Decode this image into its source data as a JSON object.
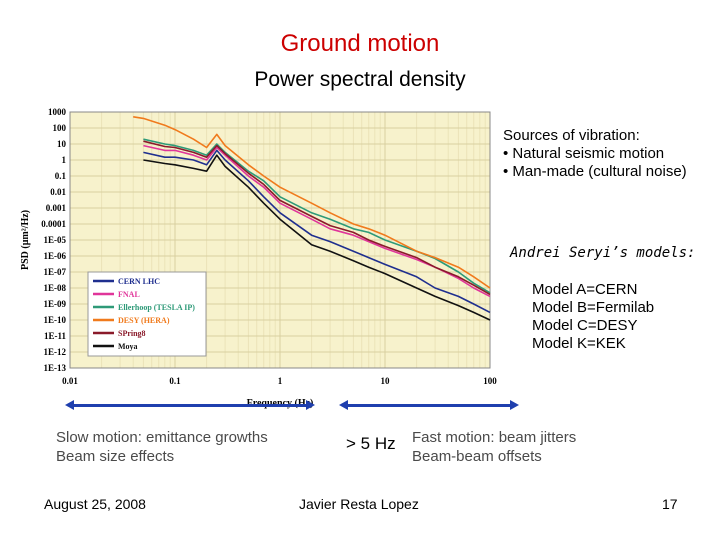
{
  "slide": {
    "title": "Ground motion",
    "subtitle": "Power spectral density",
    "sources": "Sources of vibration:\n• Natural seismic motion\n• Man-made (cultural noise)",
    "models_heading": "Andrei Seryi’s models:",
    "models": "Model A=CERN\nModel B=Fermilab\nModel C=DESY\nModel K=KEK",
    "slow_motion": "Slow motion: emittance growths\nBeam size effects",
    "threshold": "> 5 Hz",
    "fast_motion": "Fast motion: beam jitters\nBeam-beam offsets",
    "date": "August 25, 2008",
    "author": "Javier Resta Lopez",
    "page_number": "17",
    "arrow_color": "#1f3fae",
    "title_color": "#cc0000"
  },
  "chart_data": {
    "type": "line",
    "title": "",
    "xlabel": "Frequency (Hz)",
    "ylabel": "PSD (μm²/Hz)",
    "x_scale": "log",
    "y_scale": "log",
    "xlim": [
      0.01,
      100
    ],
    "ylim": [
      1e-13,
      1000
    ],
    "x_ticks": [
      "0.01",
      "0.1",
      "1",
      "10",
      "100"
    ],
    "y_ticks": [
      "1000",
      "100",
      "10",
      "1",
      "0.1",
      "0.01",
      "0.001",
      "0.0001",
      "1E-05",
      "1E-06",
      "1E-07",
      "1E-08",
      "1E-09",
      "1E-10",
      "1E-11",
      "1E-12",
      "1E-13"
    ],
    "grid": true,
    "background": "#f7f2cc",
    "legend_position": "bottom-left",
    "series": [
      {
        "name": "CERN LHC",
        "color": "#1f2f8f",
        "x": [
          0.05,
          0.08,
          0.1,
          0.15,
          0.2,
          0.25,
          0.3,
          0.5,
          0.7,
          1,
          2,
          3,
          5,
          7,
          10,
          20,
          30,
          50,
          70,
          100
        ],
        "y": [
          3,
          1.5,
          1.5,
          1,
          0.5,
          4,
          1,
          0.05,
          0.005,
          0.0005,
          2e-05,
          8e-06,
          2e-06,
          8e-07,
          3e-07,
          5e-08,
          1e-08,
          3e-09,
          1e-09,
          3e-10
        ]
      },
      {
        "name": "FNAL",
        "color": "#e0359a",
        "x": [
          0.05,
          0.08,
          0.1,
          0.15,
          0.2,
          0.25,
          0.3,
          0.5,
          0.7,
          1,
          2,
          3,
          5,
          7,
          10,
          20,
          30,
          50,
          70,
          100
        ],
        "y": [
          8,
          4,
          4,
          2,
          1,
          6,
          2,
          0.1,
          0.02,
          0.002,
          0.0002,
          5e-05,
          2e-05,
          8e-06,
          3e-06,
          6e-07,
          2e-07,
          4e-08,
          1e-08,
          3e-09
        ]
      },
      {
        "name": "Ellerhoop (TESLA IP)",
        "color": "#2e9a78",
        "x": [
          0.05,
          0.08,
          0.1,
          0.15,
          0.2,
          0.25,
          0.3,
          0.5,
          0.7,
          1,
          2,
          3,
          5,
          7,
          10,
          20,
          30,
          50,
          70,
          100
        ],
        "y": [
          20,
          10,
          8,
          4,
          2,
          10,
          3,
          0.2,
          0.05,
          0.005,
          0.0005,
          0.0002,
          5e-05,
          3e-05,
          1e-05,
          2e-06,
          7e-07,
          1e-07,
          2e-08,
          5e-09
        ]
      },
      {
        "name": "DESY (HERA)",
        "color": "#f07a1c",
        "x": [
          0.04,
          0.05,
          0.08,
          0.1,
          0.15,
          0.2,
          0.25,
          0.3,
          0.5,
          0.7,
          1,
          2,
          3,
          5,
          7,
          10,
          20,
          30,
          50,
          70,
          100
        ],
        "y": [
          500,
          400,
          150,
          80,
          20,
          6,
          40,
          8,
          0.5,
          0.1,
          0.02,
          0.002,
          0.0005,
          0.0001,
          5e-05,
          2e-05,
          2e-06,
          8e-07,
          2e-07,
          5e-08,
          1e-08
        ]
      },
      {
        "name": "SPring8",
        "color": "#8a1a2a",
        "x": [
          0.05,
          0.08,
          0.1,
          0.15,
          0.2,
          0.25,
          0.3,
          0.5,
          0.7,
          1,
          2,
          3,
          5,
          7,
          10,
          20,
          30,
          50,
          70,
          100
        ],
        "y": [
          15,
          7,
          6,
          3,
          1.5,
          8,
          2.5,
          0.15,
          0.03,
          0.003,
          0.0003,
          8e-05,
          3e-05,
          1e-05,
          4e-06,
          8e-07,
          2e-07,
          5e-08,
          1.5e-08,
          4e-09
        ]
      },
      {
        "name": "Moya",
        "color": "#111111",
        "x": [
          0.05,
          0.08,
          0.1,
          0.15,
          0.2,
          0.25,
          0.3,
          0.5,
          0.7,
          1,
          2,
          3,
          5,
          7,
          10,
          20,
          30,
          50,
          70,
          100
        ],
        "y": [
          1,
          0.6,
          0.5,
          0.3,
          0.2,
          2,
          0.4,
          0.02,
          0.002,
          0.0002,
          5e-06,
          2e-06,
          5e-07,
          2e-07,
          8e-08,
          1e-08,
          3e-09,
          8e-10,
          3e-10,
          1e-10
        ]
      }
    ]
  }
}
